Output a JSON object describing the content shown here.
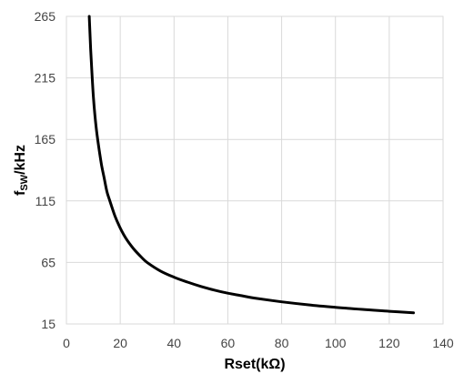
{
  "chart_data": {
    "type": "line",
    "xlabel": "Rset(kΩ)",
    "ylabel_main": "f",
    "ylabel_sub": "SW",
    "ylabel_unit": "/kHz",
    "xlim": [
      0,
      140
    ],
    "ylim": [
      15,
      265
    ],
    "x_ticks": [
      "0",
      "20",
      "40",
      "60",
      "80",
      "100",
      "120",
      "140"
    ],
    "y_ticks": [
      "15",
      "65",
      "115",
      "165",
      "215",
      "265"
    ],
    "grid": true,
    "series": [
      {
        "color": "#000000",
        "x": [
          8.5,
          9,
          10,
          11,
          12,
          13,
          14,
          15,
          16,
          18,
          20,
          22,
          25,
          28,
          30,
          35,
          40,
          45,
          50,
          55,
          60,
          65,
          70,
          80,
          90,
          100,
          110,
          120,
          129
        ],
        "y": [
          265,
          239,
          200,
          176,
          159,
          145,
          134,
          123,
          116,
          103,
          93,
          85,
          76,
          69,
          65,
          58,
          53,
          49,
          45.5,
          42.5,
          40,
          38,
          36,
          33,
          30.5,
          28.5,
          26.8,
          25.3,
          24
        ]
      }
    ]
  }
}
